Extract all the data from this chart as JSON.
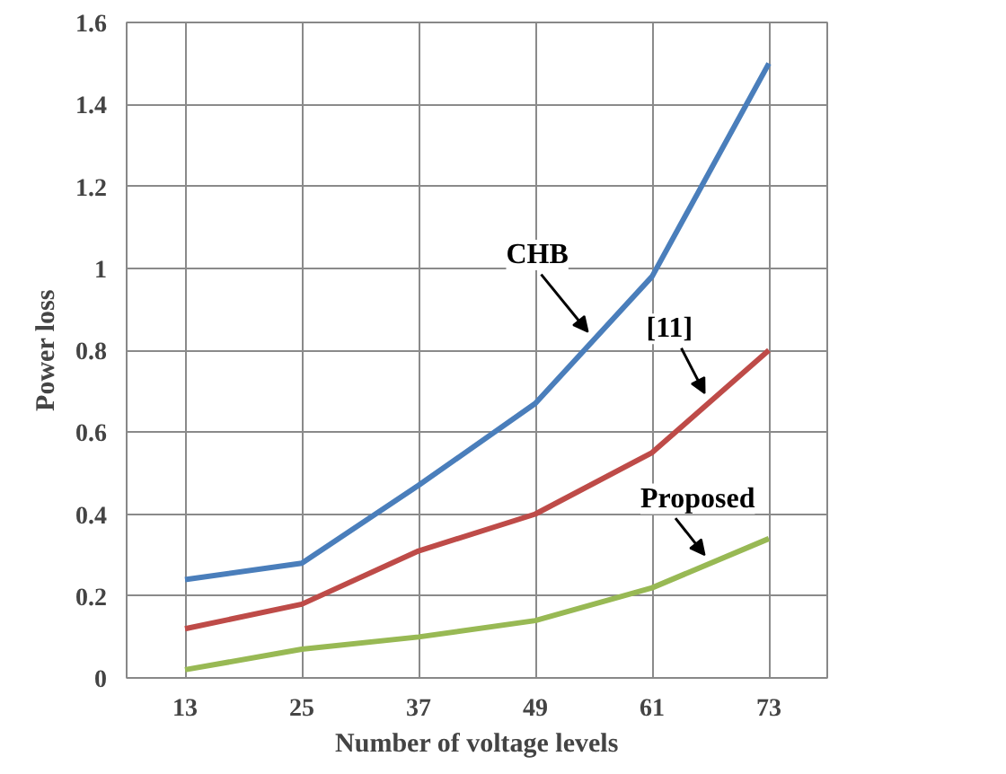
{
  "chart_data": {
    "type": "line",
    "xlabel": "Number of voltage levels",
    "ylabel": "Power loss",
    "categories": [
      "13",
      "25",
      "37",
      "49",
      "61",
      "73"
    ],
    "ylim": [
      0,
      1.6
    ],
    "yticks": [
      0,
      0.2,
      0.4,
      0.6,
      0.8,
      1,
      1.2,
      1.4,
      1.6
    ],
    "grid": true,
    "series": [
      {
        "name": "CHB",
        "color": "#4a7ebb",
        "values": [
          0.24,
          0.28,
          0.47,
          0.67,
          0.98,
          1.5
        ]
      },
      {
        "name": "[11]",
        "color": "#be4b48",
        "values": [
          0.12,
          0.18,
          0.31,
          0.4,
          0.55,
          0.8
        ]
      },
      {
        "name": "Proposed",
        "color": "#98b954",
        "values": [
          0.02,
          0.07,
          0.1,
          0.14,
          0.22,
          0.34
        ]
      }
    ]
  }
}
